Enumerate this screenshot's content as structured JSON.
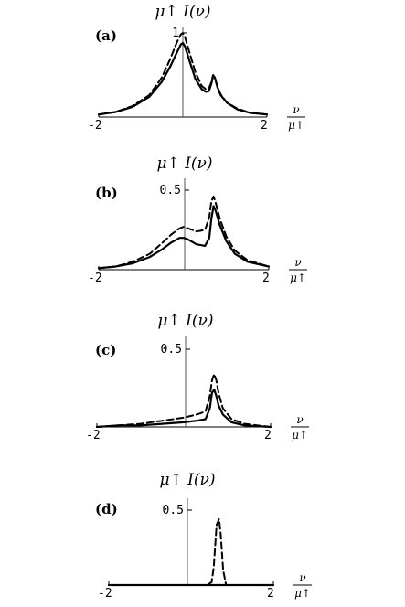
{
  "chart_data": [
    {
      "type": "line",
      "panel_label": "(a)",
      "ylabel": "μ↑ I(ν)",
      "xlabel_num": "ν",
      "xlabel_den": "μ↑",
      "xlim": [
        -2,
        2
      ],
      "ylim": [
        0,
        1.05
      ],
      "x_ticks": [
        "-2",
        "2"
      ],
      "y_ticks": [
        {
          "value": 1,
          "label": "1"
        }
      ],
      "series": [
        {
          "style": "solid",
          "x": [
            -2,
            -1.6,
            -1.2,
            -0.8,
            -0.5,
            -0.3,
            -0.15,
            -0.05,
            0,
            0.05,
            0.15,
            0.3,
            0.45,
            0.55,
            0.62,
            0.68,
            0.72,
            0.76,
            0.82,
            0.9,
            1.05,
            1.3,
            1.6,
            2
          ],
          "y": [
            0.03,
            0.06,
            0.12,
            0.24,
            0.42,
            0.6,
            0.76,
            0.86,
            0.88,
            0.84,
            0.68,
            0.45,
            0.33,
            0.3,
            0.31,
            0.4,
            0.49,
            0.47,
            0.36,
            0.26,
            0.17,
            0.09,
            0.05,
            0.03
          ]
        },
        {
          "style": "dashed",
          "x": [
            -2,
            -1.6,
            -1.2,
            -0.8,
            -0.5,
            -0.3,
            -0.15,
            -0.05,
            0,
            0.05,
            0.15,
            0.3,
            0.45,
            0.55,
            0.62,
            0.68,
            0.72,
            0.76,
            0.82,
            0.9,
            1.05,
            1.3,
            1.6,
            2
          ],
          "y": [
            0.03,
            0.06,
            0.13,
            0.26,
            0.47,
            0.69,
            0.88,
            0.98,
            1.0,
            0.95,
            0.78,
            0.53,
            0.37,
            0.33,
            0.34,
            0.42,
            0.5,
            0.47,
            0.36,
            0.27,
            0.17,
            0.1,
            0.05,
            0.03
          ]
        }
      ]
    },
    {
      "type": "line",
      "panel_label": "(b)",
      "ylabel": "μ↑ I(ν)",
      "xlabel_num": "ν",
      "xlabel_den": "μ↑",
      "xlim": [
        -2,
        2
      ],
      "ylim": [
        0,
        0.7
      ],
      "x_ticks": [
        "-2",
        "2"
      ],
      "y_ticks": [
        {
          "value": 0.5,
          "label": "0.5"
        }
      ],
      "series": [
        {
          "style": "solid",
          "x": [
            -2,
            -1.6,
            -1.2,
            -0.8,
            -0.5,
            -0.3,
            -0.1,
            0,
            0.1,
            0.3,
            0.5,
            0.6,
            0.65,
            0.7,
            0.75,
            0.85,
            1.0,
            1.2,
            1.5,
            2
          ],
          "y": [
            0.01,
            0.02,
            0.04,
            0.08,
            0.13,
            0.17,
            0.2,
            0.2,
            0.19,
            0.16,
            0.15,
            0.2,
            0.32,
            0.4,
            0.37,
            0.28,
            0.18,
            0.1,
            0.05,
            0.02
          ]
        },
        {
          "style": "dashed",
          "x": [
            -2,
            -1.6,
            -1.2,
            -0.8,
            -0.5,
            -0.3,
            -0.1,
            0,
            0.1,
            0.3,
            0.5,
            0.6,
            0.65,
            0.7,
            0.75,
            0.85,
            1.0,
            1.2,
            1.5,
            2
          ],
          "y": [
            0.01,
            0.02,
            0.05,
            0.1,
            0.17,
            0.22,
            0.26,
            0.27,
            0.26,
            0.24,
            0.25,
            0.33,
            0.43,
            0.46,
            0.42,
            0.32,
            0.21,
            0.12,
            0.06,
            0.02
          ]
        }
      ]
    },
    {
      "type": "line",
      "panel_label": "(c)",
      "ylabel": "μ↑ I(ν)",
      "xlabel_num": "ν",
      "xlabel_den": "μ↑",
      "xlim": [
        -2,
        2
      ],
      "ylim": [
        0,
        0.7
      ],
      "x_ticks": [
        "-2",
        "2"
      ],
      "y_ticks": [
        {
          "value": 0.5,
          "label": "0.5"
        }
      ],
      "series": [
        {
          "style": "solid",
          "x": [
            -2,
            -1.5,
            -1.0,
            -0.5,
            0,
            0.3,
            0.5,
            0.6,
            0.65,
            0.7,
            0.75,
            0.8,
            0.9,
            1.1,
            1.4,
            2
          ],
          "y": [
            0.0,
            0.01,
            0.01,
            0.02,
            0.03,
            0.04,
            0.05,
            0.12,
            0.22,
            0.24,
            0.2,
            0.14,
            0.08,
            0.03,
            0.01,
            0.0
          ]
        },
        {
          "style": "dashed",
          "x": [
            -2,
            -1.5,
            -1.0,
            -0.5,
            0,
            0.3,
            0.5,
            0.6,
            0.65,
            0.7,
            0.75,
            0.8,
            0.9,
            1.1,
            1.4,
            2
          ],
          "y": [
            0.0,
            0.01,
            0.02,
            0.04,
            0.06,
            0.08,
            0.1,
            0.2,
            0.3,
            0.34,
            0.3,
            0.22,
            0.12,
            0.05,
            0.02,
            0.0
          ]
        }
      ]
    },
    {
      "type": "line",
      "panel_label": "(d)",
      "ylabel": "μ↑ I(ν)",
      "xlabel_num": "ν",
      "xlabel_den": "μ↑",
      "xlim": [
        -2,
        2
      ],
      "ylim": [
        0,
        0.7
      ],
      "x_ticks": [
        "-2",
        "2"
      ],
      "y_ticks": [
        {
          "value": 0.5,
          "label": "0.5"
        }
      ],
      "series": [
        {
          "style": "solid",
          "x": [
            -2,
            2
          ],
          "y": [
            0.0,
            0.0
          ]
        },
        {
          "style": "dashed",
          "x": [
            -2,
            0.4,
            0.5,
            0.55,
            0.62,
            0.68,
            0.72,
            0.78,
            0.85,
            2
          ],
          "y": [
            0.0,
            0.0,
            0.02,
            0.12,
            0.4,
            0.44,
            0.34,
            0.1,
            0.0,
            0.0
          ]
        }
      ]
    }
  ]
}
